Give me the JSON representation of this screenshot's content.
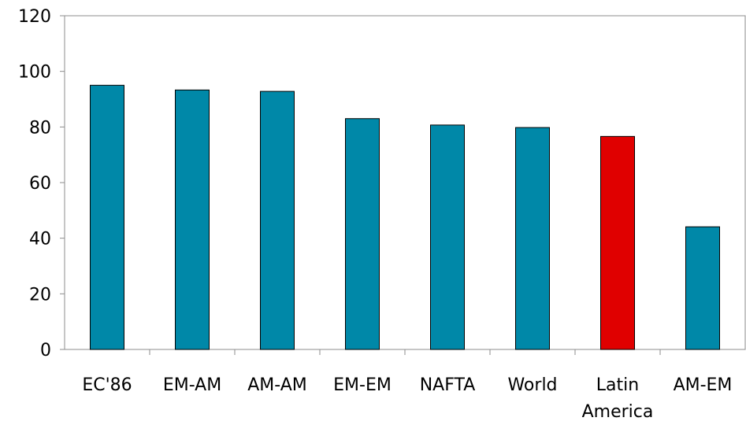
{
  "chart_data": {
    "type": "bar",
    "title": "",
    "xlabel": "",
    "ylabel": "",
    "ylim": [
      0,
      120
    ],
    "yticks": [
      0,
      20,
      40,
      60,
      80,
      100,
      120
    ],
    "grid": false,
    "legend": "none",
    "categories": [
      "EC'86",
      "EM-AM",
      "AM-AM",
      "EM-EM",
      "NAFTA",
      "World",
      "Latin America",
      "AM-EM"
    ],
    "category_lines": [
      [
        "EC'86"
      ],
      [
        "EM-AM"
      ],
      [
        "AM-AM"
      ],
      [
        "EM-EM"
      ],
      [
        "NAFTA"
      ],
      [
        "World"
      ],
      [
        "Latin",
        "America"
      ],
      [
        "AM-EM"
      ]
    ],
    "values": [
      95,
      93.3,
      92.8,
      83,
      80.7,
      79.8,
      76.6,
      44.1
    ],
    "colors": [
      "#0088a8",
      "#0088a8",
      "#0088a8",
      "#0088a8",
      "#0088a8",
      "#0088a8",
      "#e00000",
      "#0088a8"
    ],
    "bar_color": "#0088a8",
    "highlight_color": "#e00000",
    "highlight_category": "Latin America"
  }
}
